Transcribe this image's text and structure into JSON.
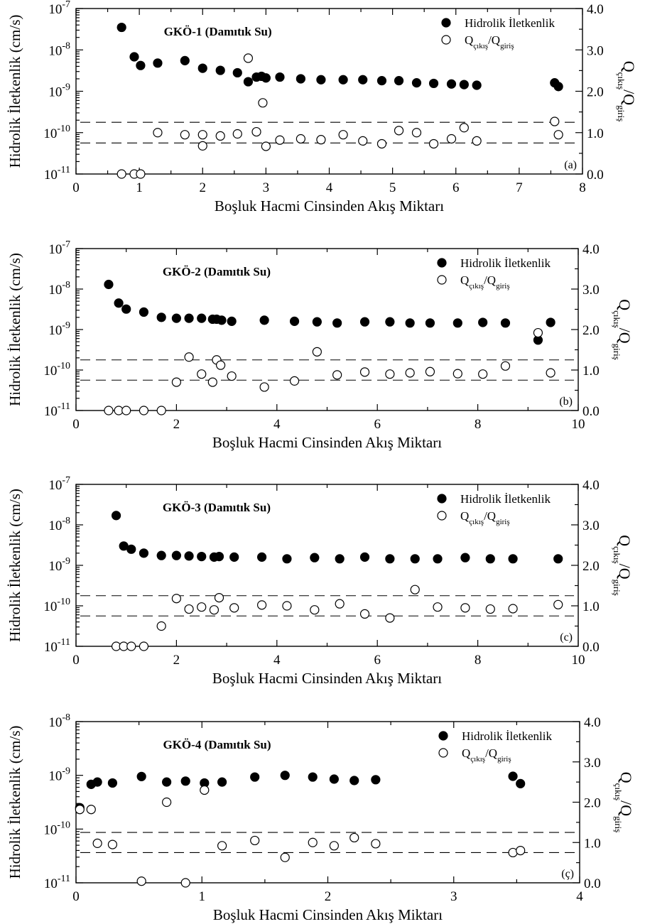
{
  "chart_data": [
    {
      "type": "scatter",
      "title": "GKÖ-1 (Damıtık Su)",
      "panel_label": "(a)",
      "xlabel": "Boşluk Hacmi Cinsinden Akış Miktarı",
      "ylabel": "Hidrolik İletkenlik (cm/s)",
      "y2label": "Q_çıkış/Q_giriş",
      "xlim": [
        0,
        8
      ],
      "x_ticks": [
        0,
        1,
        2,
        3,
        4,
        5,
        6,
        7,
        8
      ],
      "y_log_range": [
        -11,
        -7
      ],
      "y2lim": [
        0,
        4
      ],
      "y2_ticks": [
        "0.0",
        "1.0",
        "2.0",
        "3.0",
        "4.0"
      ],
      "dashed_y2": [
        0.75,
        1.25
      ],
      "series": [
        {
          "name": "Hidrolik İletkenlik",
          "axis": "left",
          "filled": true,
          "x": [
            0.72,
            0.92,
            1.02,
            1.29,
            1.72,
            2.0,
            2.28,
            2.55,
            2.72,
            2.85,
            2.93,
            3.0,
            3.22,
            3.55,
            3.87,
            4.22,
            4.53,
            4.83,
            5.1,
            5.38,
            5.65,
            5.93,
            6.13,
            6.33,
            7.56,
            7.62
          ],
          "y": [
            3.5e-08,
            6.8e-09,
            4.2e-09,
            4.8e-09,
            5.5e-09,
            3.6e-09,
            3.2e-09,
            2.8e-09,
            1.7e-09,
            2.2e-09,
            2.3e-09,
            2.1e-09,
            2.2e-09,
            2e-09,
            1.9e-09,
            1.9e-09,
            1.9e-09,
            1.8e-09,
            1.8e-09,
            1.6e-09,
            1.55e-09,
            1.5e-09,
            1.45e-09,
            1.4e-09,
            1.6e-09,
            1.3e-09
          ]
        },
        {
          "name": "Q_çıkış/Q_giriş",
          "axis": "right",
          "filled": false,
          "x": [
            0.72,
            0.92,
            1.02,
            1.29,
            1.72,
            2.0,
            2.0,
            2.28,
            2.55,
            2.72,
            2.85,
            2.95,
            3.0,
            3.22,
            3.55,
            3.87,
            4.22,
            4.53,
            4.83,
            5.1,
            5.38,
            5.65,
            5.93,
            6.13,
            6.33,
            7.56,
            7.62
          ],
          "y": [
            0.0,
            0.0,
            0.0,
            1.0,
            0.95,
            0.95,
            0.68,
            0.92,
            0.97,
            2.8,
            1.02,
            1.72,
            0.67,
            0.82,
            0.85,
            0.83,
            0.95,
            0.8,
            0.73,
            1.05,
            1.0,
            0.73,
            0.85,
            1.12,
            0.8,
            1.27,
            0.95
          ]
        }
      ]
    },
    {
      "type": "scatter",
      "title": "GKÖ-2 (Damıtık Su)",
      "panel_label": "(b)",
      "xlabel": "Boşluk Hacmi Cinsinden Akış Miktarı",
      "ylabel": "Hidrolik İletkenlik (cm/s)",
      "y2label": "Q_çıkış/Q_giriş",
      "xlim": [
        0,
        10
      ],
      "x_ticks": [
        0,
        2,
        4,
        6,
        8,
        10
      ],
      "y_log_range": [
        -11,
        -7
      ],
      "y2lim": [
        0,
        4
      ],
      "y2_ticks": [
        "0.0",
        "1.0",
        "2.0",
        "3.0",
        "4.0"
      ],
      "dashed_y2": [
        0.75,
        1.25
      ],
      "series": [
        {
          "name": "Hidrolik İletkenlik",
          "axis": "left",
          "filled": true,
          "x": [
            0.65,
            0.85,
            1.0,
            1.35,
            1.7,
            2.0,
            2.25,
            2.5,
            2.72,
            2.8,
            2.9,
            3.1,
            3.75,
            4.35,
            4.8,
            5.2,
            5.75,
            6.25,
            6.65,
            7.05,
            7.6,
            8.1,
            8.55,
            9.2,
            9.45
          ],
          "y": [
            1.3e-08,
            4.5e-09,
            3.2e-09,
            2.7e-09,
            2e-09,
            1.9e-09,
            1.9e-09,
            1.9e-09,
            1.8e-09,
            1.8e-09,
            1.7e-09,
            1.6e-09,
            1.7e-09,
            1.6e-09,
            1.55e-09,
            1.45e-09,
            1.55e-09,
            1.55e-09,
            1.45e-09,
            1.45e-09,
            1.45e-09,
            1.5e-09,
            1.45e-09,
            5.5e-10,
            1.5e-09
          ]
        },
        {
          "name": "Q_çıkış/Q_giriş",
          "axis": "right",
          "filled": false,
          "x": [
            0.65,
            0.85,
            1.0,
            1.35,
            1.7,
            2.0,
            2.25,
            2.5,
            2.72,
            2.8,
            2.88,
            3.1,
            3.75,
            4.35,
            4.8,
            5.2,
            5.75,
            6.25,
            6.65,
            7.05,
            7.6,
            8.1,
            8.55,
            9.2,
            9.45
          ],
          "y": [
            0.0,
            0.0,
            0.0,
            0.0,
            0.0,
            0.7,
            1.32,
            0.9,
            0.7,
            1.25,
            1.12,
            0.85,
            0.58,
            0.73,
            1.45,
            0.88,
            0.95,
            0.9,
            0.93,
            0.96,
            0.91,
            0.9,
            1.1,
            1.92,
            0.93
          ]
        }
      ]
    },
    {
      "type": "scatter",
      "title": "GKÖ-3 (Damıtık Su)",
      "panel_label": "(c)",
      "xlabel": "Boşluk Hacmi Cinsinden Akış Miktarı",
      "ylabel": "Hidrolik İletkenlik (cm/s)",
      "y2label": "Q_çıkış/Q_giriş",
      "xlim": [
        0,
        10
      ],
      "x_ticks": [
        0,
        2,
        4,
        6,
        8,
        10
      ],
      "y_log_range": [
        -11,
        -7
      ],
      "y2lim": [
        0,
        4
      ],
      "y2_ticks": [
        "0.0",
        "1.0",
        "2.0",
        "3.0",
        "4.0"
      ],
      "dashed_y2": [
        0.75,
        1.25
      ],
      "series": [
        {
          "name": "Hidrolik İletkenlik",
          "axis": "left",
          "filled": true,
          "x": [
            0.8,
            0.95,
            1.1,
            1.35,
            1.7,
            2.0,
            2.25,
            2.5,
            2.75,
            2.85,
            3.15,
            3.7,
            4.2,
            4.75,
            5.25,
            5.75,
            6.25,
            6.75,
            7.2,
            7.75,
            8.25,
            8.7,
            9.6
          ],
          "y": [
            1.7e-08,
            3e-09,
            2.5e-09,
            2e-09,
            1.75e-09,
            1.75e-09,
            1.7e-09,
            1.65e-09,
            1.6e-09,
            1.65e-09,
            1.6e-09,
            1.6e-09,
            1.45e-09,
            1.55e-09,
            1.45e-09,
            1.6e-09,
            1.45e-09,
            1.45e-09,
            1.45e-09,
            1.55e-09,
            1.45e-09,
            1.45e-09,
            1.45e-09
          ]
        },
        {
          "name": "Q_çıkış/Q_giriş",
          "axis": "right",
          "filled": false,
          "x": [
            0.8,
            0.95,
            1.1,
            1.35,
            1.7,
            2.0,
            2.25,
            2.5,
            2.75,
            2.85,
            3.15,
            3.7,
            4.2,
            4.75,
            5.25,
            5.75,
            6.25,
            6.75,
            7.2,
            7.75,
            8.25,
            8.7,
            9.6
          ],
          "y": [
            0.0,
            0.0,
            0.0,
            0.0,
            0.5,
            1.18,
            0.92,
            0.97,
            0.9,
            1.2,
            0.95,
            1.02,
            1.0,
            0.9,
            1.05,
            0.8,
            0.7,
            1.4,
            0.97,
            0.95,
            0.92,
            0.93,
            1.03
          ]
        }
      ]
    },
    {
      "type": "scatter",
      "title": "GKÖ-4 (Damıtık Su)",
      "panel_label": "(ç)",
      "xlabel": "Boşluk Hacmi Cinsinden Akış Miktarı",
      "ylabel": "Hidrolik İletkenlik (cm/s)",
      "y2label": "Q_çıkış/Q_giriş",
      "xlim": [
        0,
        4
      ],
      "x_ticks": [
        0,
        1,
        2,
        3,
        4
      ],
      "y_log_range": [
        -11,
        -8
      ],
      "y2lim": [
        0,
        4
      ],
      "y2_ticks": [
        "0.0",
        "1.0",
        "2.0",
        "3.0",
        "4.0"
      ],
      "dashed_y2": [
        0.75,
        1.25
      ],
      "series": [
        {
          "name": "Hidrolik İletkenlik",
          "axis": "left",
          "filled": true,
          "x": [
            0.03,
            0.12,
            0.17,
            0.29,
            0.52,
            0.72,
            0.87,
            1.02,
            1.16,
            1.42,
            1.66,
            1.88,
            2.05,
            2.21,
            2.38,
            3.47,
            3.53
          ],
          "y": [
            2.5e-10,
            6.8e-10,
            7.5e-10,
            7.2e-10,
            9.5e-10,
            7.5e-10,
            7.8e-10,
            7.2e-10,
            7.5e-10,
            9.3e-10,
            1e-09,
            9.3e-10,
            8.5e-10,
            8e-10,
            8.3e-10,
            9.6e-10,
            7e-10
          ]
        },
        {
          "name": "Q_çıkış/Q_giriş",
          "axis": "right",
          "filled": false,
          "x": [
            0.03,
            0.12,
            0.17,
            0.29,
            0.52,
            0.72,
            0.87,
            1.02,
            1.16,
            1.42,
            1.66,
            1.88,
            2.05,
            2.21,
            2.38,
            3.47,
            3.53
          ],
          "y": [
            1.82,
            1.82,
            0.98,
            0.95,
            0.04,
            2.0,
            0.0,
            2.3,
            0.92,
            1.05,
            0.63,
            1.0,
            0.92,
            1.12,
            0.97,
            0.75,
            0.8
          ]
        }
      ]
    }
  ]
}
